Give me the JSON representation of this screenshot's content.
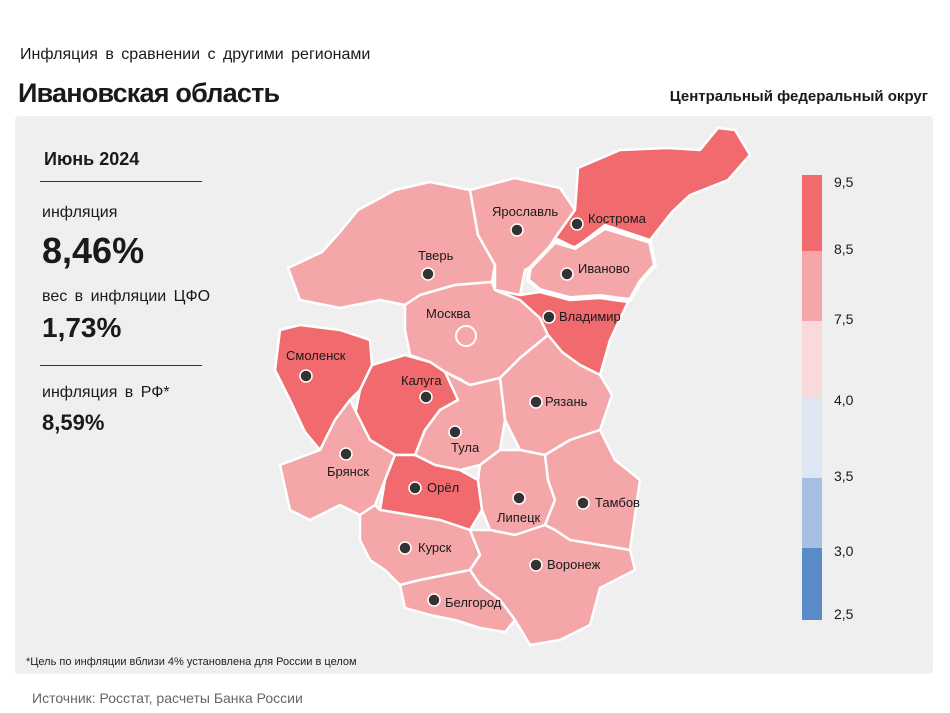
{
  "header": {
    "subtitle": "Инфляция в сравнении с другими регионами",
    "title": "Ивановская область",
    "district": "Центральный федеральный округ"
  },
  "side": {
    "month": "Июнь 2024",
    "inflation_label": "инфляция",
    "inflation_value": "8,46%",
    "weight_label": "вес в инфляции ЦФО",
    "weight_value": "1,73%",
    "rf_label": "инфляция в РФ*",
    "rf_value": "8,59%"
  },
  "map": {
    "regions": {
      "yaroslavl": "Ярославль",
      "kostroma": "Кострома",
      "ivanovo": "Иваново",
      "tver": "Тверь",
      "moscow": "Москва",
      "vladimir": "Владимир",
      "smolensk": "Смоленск",
      "kaluga": "Калуга",
      "ryazan": "Рязань",
      "tula": "Тула",
      "bryansk": "Брянск",
      "orel": "Орёл",
      "lipetsk": "Липецк",
      "tambov": "Тамбов",
      "kursk": "Курск",
      "voronezh": "Воронеж",
      "belgorod": "Белгород"
    },
    "colors": {
      "high": "#f06a6e",
      "mid": "#f4a6a8",
      "low": "#f9d9da",
      "cool1": "#dde6f3",
      "cool2": "#a7bfe0",
      "cool3": "#5a8bc8"
    }
  },
  "legend": {
    "ticks": [
      "9,5",
      "8,5",
      "7,5",
      "4,0",
      "3,5",
      "3,0",
      "2,5"
    ]
  },
  "footer": {
    "footnote": "*Цель по инфляции вблизи 4% установлена для России в целом",
    "source": "Источник: Росстат, расчеты Банка России"
  }
}
